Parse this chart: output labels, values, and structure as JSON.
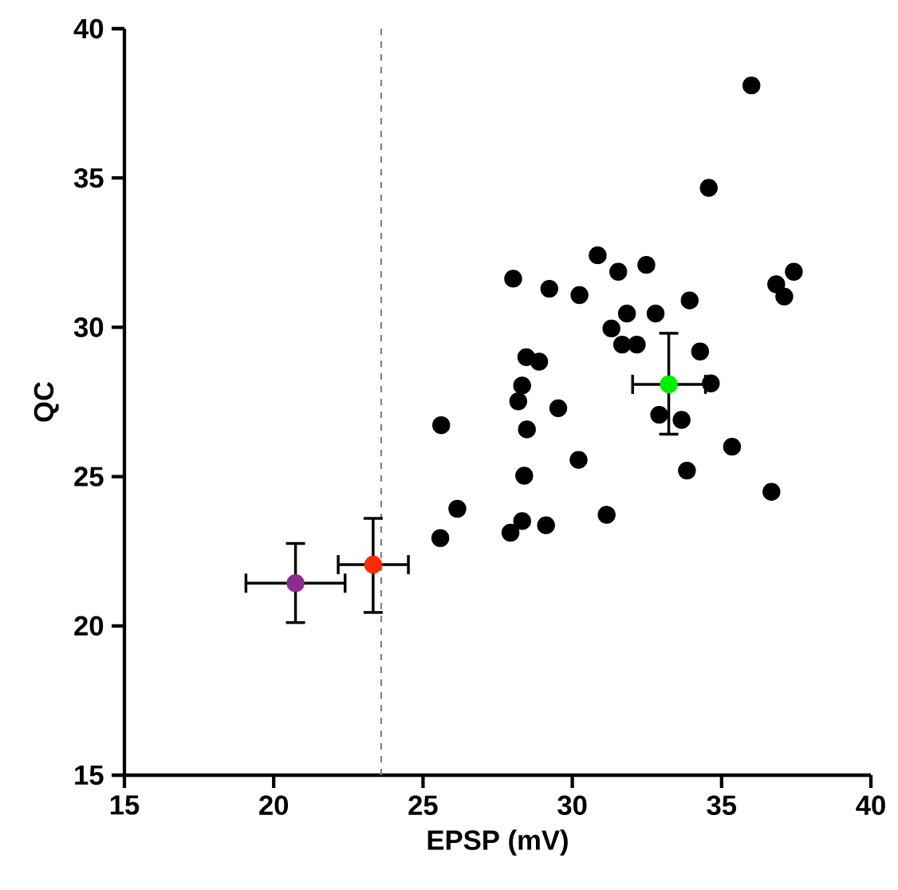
{
  "chart_data": {
    "type": "scatter",
    "xlabel": "EPSP (mV)",
    "ylabel": "QC",
    "xlim": [
      15,
      40
    ],
    "xticks": [
      15,
      20,
      25,
      30,
      35,
      40
    ],
    "ylim": [
      15,
      40
    ],
    "yticks": [
      15,
      20,
      25,
      30,
      35,
      40
    ],
    "grid": false,
    "ref_lines": [
      {
        "axis": "x",
        "value": 23.6,
        "color": "#808080",
        "line_style": "dashed"
      }
    ],
    "series": [
      {
        "color": "#000000",
        "x": [
          36.0,
          34.57,
          30.85,
          31.54,
          32.48,
          28.02,
          29.23,
          30.24,
          36.83,
          37.42,
          37.1,
          33.93,
          31.83,
          32.79,
          31.31,
          31.67,
          31.93,
          32.16,
          34.28,
          28.46,
          28.89,
          28.32,
          34.64,
          28.19,
          29.53,
          25.61,
          28.48,
          32.91,
          33.66,
          35.35,
          30.21,
          28.39,
          33.84,
          36.67,
          26.15,
          28.32,
          27.93,
          29.12,
          31.15,
          25.58
        ],
        "values": [
          38.1,
          34.67,
          32.41,
          31.86,
          32.09,
          31.63,
          31.29,
          31.08,
          31.44,
          31.86,
          31.03,
          30.9,
          30.46,
          30.46,
          29.96,
          29.42,
          null,
          29.42,
          29.19,
          29.0,
          28.85,
          28.05,
          28.12,
          27.52,
          27.29,
          26.72,
          26.58,
          27.07,
          26.9,
          26.0,
          25.56,
          25.03,
          25.2,
          24.49,
          23.92,
          23.51,
          23.12,
          23.37,
          23.72,
          22.94
        ]
      },
      {
        "color": "#8e2c8e",
        "x": [
          20.73
        ],
        "values": [
          21.43
        ],
        "xerrors": [
          [
            19.07,
            22.39
          ]
        ],
        "errors": [
          [
            20.11,
            22.76
          ]
        ]
      },
      {
        "color": "#ff2a00",
        "x": [
          23.33
        ],
        "values": [
          22.05
        ],
        "xerrors": [
          [
            22.16,
            24.51
          ]
        ],
        "errors": [
          [
            20.45,
            23.6
          ]
        ]
      },
      {
        "color": "#00ee00",
        "x": [
          33.23
        ],
        "values": [
          28.09
        ],
        "xerrors": [
          [
            32.02,
            34.46
          ]
        ],
        "errors": [
          [
            26.42,
            29.8
          ]
        ]
      }
    ]
  }
}
